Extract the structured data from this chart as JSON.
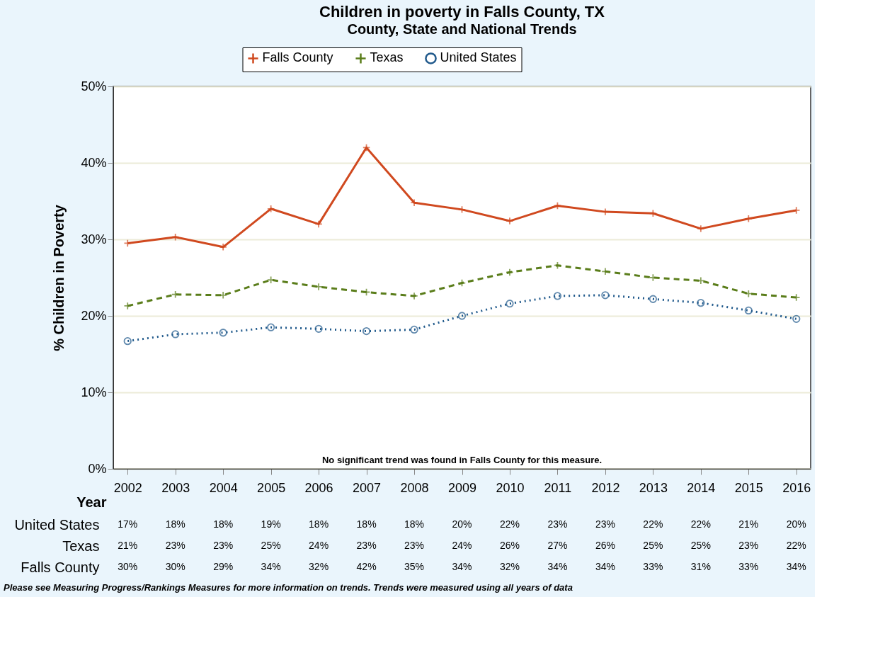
{
  "chart_data": {
    "type": "line",
    "title": "Children in poverty in Falls County, TX",
    "subtitle": "County, State and National Trends",
    "xlabel": "Year",
    "ylabel": "% Children in Poverty",
    "categories": [
      "2002",
      "2003",
      "2004",
      "2005",
      "2006",
      "2007",
      "2008",
      "2009",
      "2010",
      "2011",
      "2012",
      "2013",
      "2014",
      "2015",
      "2016"
    ],
    "series": [
      {
        "name": "Falls County",
        "color": "#d0491f",
        "marker": "cross",
        "line_style": "solid",
        "values": [
          29.5,
          30.3,
          29.0,
          34.0,
          32.0,
          42.0,
          34.8,
          33.9,
          32.4,
          34.4,
          33.6,
          33.4,
          31.4,
          32.7,
          33.8
        ],
        "value_labels": [
          "30%",
          "30%",
          "29%",
          "34%",
          "32%",
          "42%",
          "35%",
          "34%",
          "32%",
          "34%",
          "34%",
          "33%",
          "31%",
          "33%",
          "34%"
        ]
      },
      {
        "name": "Texas",
        "color": "#5a7d1a",
        "marker": "cross",
        "line_style": "dashed",
        "values": [
          21.3,
          22.8,
          22.7,
          24.7,
          23.8,
          23.1,
          22.6,
          24.3,
          25.7,
          26.6,
          25.8,
          25.0,
          24.6,
          22.9,
          22.4
        ],
        "value_labels": [
          "21%",
          "23%",
          "23%",
          "25%",
          "24%",
          "23%",
          "23%",
          "24%",
          "26%",
          "27%",
          "26%",
          "25%",
          "25%",
          "23%",
          "22%"
        ]
      },
      {
        "name": "United States",
        "color": "#215a8c",
        "marker": "circle",
        "line_style": "dotted",
        "values": [
          16.7,
          17.6,
          17.8,
          18.5,
          18.3,
          18.0,
          18.2,
          20.0,
          21.6,
          22.6,
          22.7,
          22.2,
          21.7,
          20.7,
          19.6
        ],
        "value_labels": [
          "17%",
          "18%",
          "18%",
          "19%",
          "18%",
          "18%",
          "18%",
          "20%",
          "22%",
          "23%",
          "23%",
          "22%",
          "22%",
          "21%",
          "20%"
        ]
      }
    ],
    "ylim": [
      0,
      50
    ],
    "yticks": [
      {
        "value": 0,
        "label": "0%"
      },
      {
        "value": 10,
        "label": "10%"
      },
      {
        "value": 20,
        "label": "20%"
      },
      {
        "value": 30,
        "label": "30%"
      },
      {
        "value": 40,
        "label": "40%"
      },
      {
        "value": 50,
        "label": "50%"
      }
    ],
    "grid": "y",
    "legend": "top",
    "annotations": [
      "No significant trend was found in Falls County for this measure.",
      "Please see Measuring Progress/Rankings Measures for more information on trends. Trends were measured using all years of data"
    ]
  }
}
